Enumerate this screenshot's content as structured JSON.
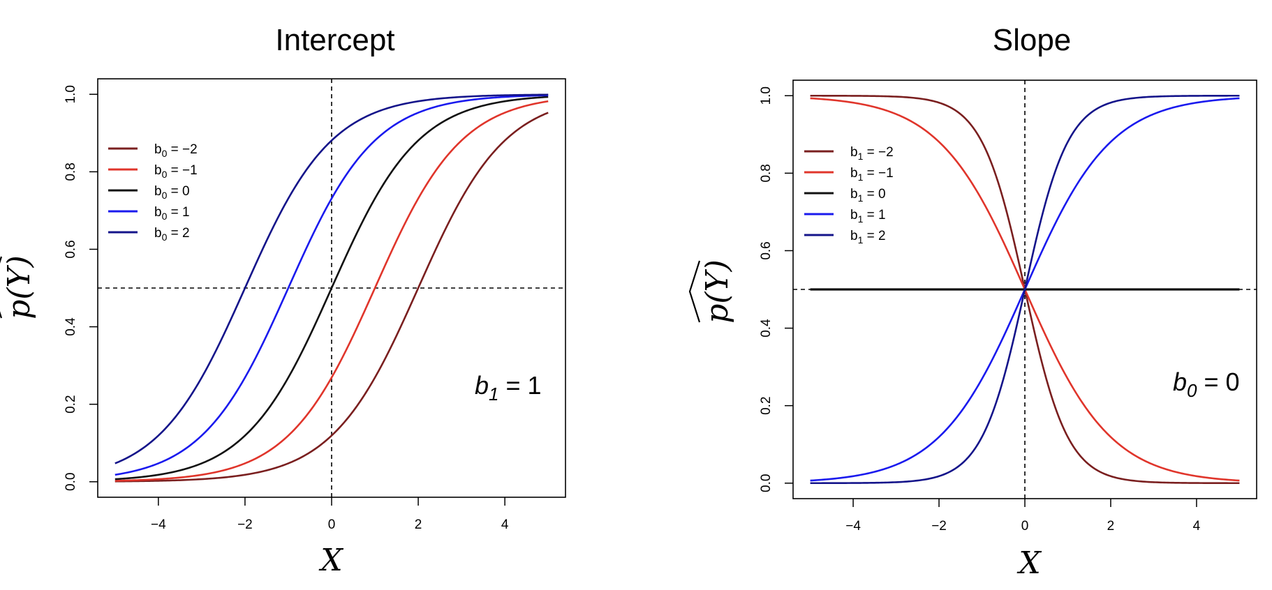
{
  "chart_data": [
    {
      "type": "line",
      "title": "Intercept",
      "xlabel": "X",
      "ylabel": "p(Y)",
      "xlim": [
        -5.4,
        5.4
      ],
      "ylim": [
        -0.04,
        1.04
      ],
      "x_ticks": [
        "−4",
        "−2",
        "0",
        "2",
        "4"
      ],
      "x_tick_values": [
        -4,
        -2,
        0,
        2,
        4
      ],
      "y_ticks": [
        "0.0",
        "0.2",
        "0.4",
        "0.6",
        "0.8",
        "1.0"
      ],
      "y_tick_values": [
        0,
        0.2,
        0.4,
        0.6,
        0.8,
        1.0
      ],
      "x_range": [
        -5,
        5
      ],
      "function": "logistic: p = 1 / (1 + exp(-(b0 + b1*x)))",
      "reference_lines": {
        "vertical_x": 0,
        "horizontal_y": 0.5,
        "style": "dashed"
      },
      "legend_position": "upper-left",
      "annotation": {
        "var": "b",
        "sub": "1",
        "rest": " = 1"
      },
      "series": [
        {
          "name": "b0 = −2",
          "label_main": "b",
          "label_sub": "0",
          "label_rest": " = −2",
          "b0": -2,
          "b1": 1,
          "color": "#7a1f1f"
        },
        {
          "name": "b0 = −1",
          "label_main": "b",
          "label_sub": "0",
          "label_rest": " = −1",
          "b0": -1,
          "b1": 1,
          "color": "#e0352b"
        },
        {
          "name": "b0 = 0",
          "label_main": "b",
          "label_sub": "0",
          "label_rest": " = 0",
          "b0": 0,
          "b1": 1,
          "color": "#111111"
        },
        {
          "name": "b0 = 1",
          "label_main": "b",
          "label_sub": "0",
          "label_rest": " = 1",
          "b0": 1,
          "b1": 1,
          "color": "#1a1aee"
        },
        {
          "name": "b0 = 2",
          "label_main": "b",
          "label_sub": "0",
          "label_rest": " = 2",
          "b0": 2,
          "b1": 1,
          "color": "#14148a"
        }
      ]
    },
    {
      "type": "line",
      "title": "Slope",
      "xlabel": "X",
      "ylabel": "p(Y)",
      "xlim": [
        -5.4,
        5.4
      ],
      "ylim": [
        -0.04,
        1.04
      ],
      "x_ticks": [
        "−4",
        "−2",
        "0",
        "2",
        "4"
      ],
      "x_tick_values": [
        -4,
        -2,
        0,
        2,
        4
      ],
      "y_ticks": [
        "0.0",
        "0.2",
        "0.4",
        "0.6",
        "0.8",
        "1.0"
      ],
      "y_tick_values": [
        0,
        0.2,
        0.4,
        0.6,
        0.8,
        1.0
      ],
      "x_range": [
        -5,
        5
      ],
      "function": "logistic: p = 1 / (1 + exp(-(b0 + b1*x)))",
      "reference_lines": {
        "vertical_x": 0,
        "horizontal_y": 0.5,
        "style": "dashed"
      },
      "legend_position": "upper-left",
      "annotation": {
        "var": "b",
        "sub": "0",
        "rest": " = 0"
      },
      "series": [
        {
          "name": "b1 = −2",
          "label_main": "b",
          "label_sub": "1",
          "label_rest": " = −2",
          "b0": 0,
          "b1": -2,
          "color": "#7a1f1f"
        },
        {
          "name": "b1 = −1",
          "label_main": "b",
          "label_sub": "1",
          "label_rest": " = −1",
          "b0": 0,
          "b1": -1,
          "color": "#e0352b"
        },
        {
          "name": "b1 = 0",
          "label_main": "b",
          "label_sub": "1",
          "label_rest": " = 0",
          "b0": 0,
          "b1": 0,
          "color": "#111111"
        },
        {
          "name": "b1 = 1",
          "label_main": "b",
          "label_sub": "1",
          "label_rest": " = 1",
          "b0": 0,
          "b1": 1,
          "color": "#1a1aee"
        },
        {
          "name": "b1 = 2",
          "label_main": "b",
          "label_sub": "1",
          "label_rest": " = 2",
          "b0": 0,
          "b1": 2,
          "color": "#14148a"
        }
      ]
    }
  ]
}
